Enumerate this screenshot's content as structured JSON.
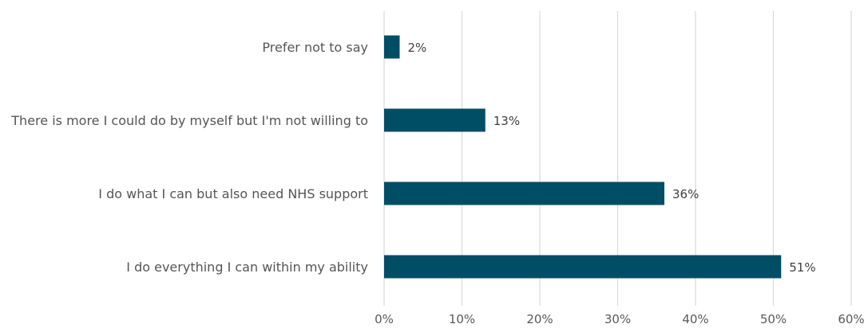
{
  "chart_data": {
    "type": "bar",
    "orientation": "horizontal",
    "categories": [
      "Prefer not to say",
      "There is more I could do by myself but I'm not willing to",
      "I do what I can but also need NHS support",
      "I do everything I can within my ability"
    ],
    "values": [
      2,
      13,
      36,
      51
    ],
    "data_labels": [
      "2%",
      "13%",
      "36%",
      "51%"
    ],
    "xlim": [
      0,
      60
    ],
    "xticks": [
      0,
      10,
      20,
      30,
      40,
      50,
      60
    ],
    "xtick_labels": [
      "0%",
      "10%",
      "20%",
      "30%",
      "40%",
      "50%",
      "60%"
    ],
    "grid": true,
    "legend": "none",
    "bar_color": "#004d66",
    "grid_color": "#d9d9d9"
  }
}
